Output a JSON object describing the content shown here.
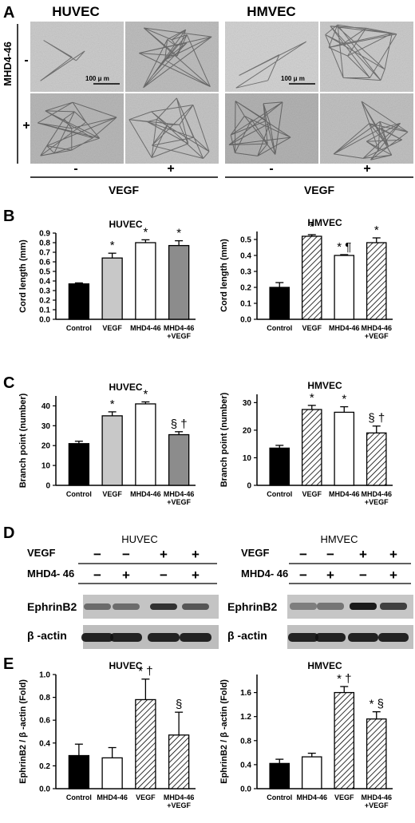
{
  "panel_labels": [
    "A",
    "B",
    "C",
    "D",
    "E"
  ],
  "panelA": {
    "huvec_title": "HUVEC",
    "hmvec_title": "HMVEC",
    "row_label": "MHD4-46",
    "row_minus": "-",
    "row_plus": "+",
    "col_minus": "-",
    "col_plus": "+",
    "vegf_label": "VEGF",
    "scale_bar_label": "100 μ m"
  },
  "star": "*",
  "chart_data": [
    {
      "id": "B-HUVEC",
      "type": "bar",
      "title": "HUVEC",
      "ylabel": "Cord length (mm)",
      "categories": [
        "Control",
        "VEGF",
        "MHD4-46",
        "MHD4-46\n+VEGF"
      ],
      "values": [
        0.37,
        0.64,
        0.8,
        0.77
      ],
      "errors": [
        0.01,
        0.05,
        0.03,
        0.05
      ],
      "ylim": [
        0,
        0.9
      ],
      "yticks": [
        "0.0",
        "0.1",
        "0.2",
        "0.3",
        "0.4",
        "0.5",
        "0.6",
        "0.7",
        "0.8",
        "0.9"
      ],
      "annotations": [
        "",
        "*",
        "*",
        "*"
      ],
      "fills": [
        "#000000",
        "#c8c8c8",
        "#ffffff",
        "#8c8c8c"
      ]
    },
    {
      "id": "B-HMVEC",
      "type": "bar",
      "title": "HMVEC",
      "ylabel": "Cord length (mm)",
      "categories": [
        "Control",
        "VEGF",
        "MHD4-46",
        "MHD4-46\n+VEGF"
      ],
      "values": [
        0.2,
        0.52,
        0.4,
        0.48
      ],
      "errors": [
        0.03,
        0.01,
        0.005,
        0.03
      ],
      "ylim": [
        0,
        0.55
      ],
      "yticks": [
        "0.0",
        "0.1",
        "0.2",
        "0.3",
        "0.4",
        "0.5"
      ],
      "annotations": [
        "",
        "*",
        "* ¶",
        "*"
      ],
      "fills": [
        "#000000",
        "hatch",
        "#ffffff",
        "hatch"
      ]
    },
    {
      "id": "C-HUVEC",
      "type": "bar",
      "title": "HUVEC",
      "ylabel": "Branch point (number)",
      "categories": [
        "Control",
        "VEGF",
        "MHD4-46",
        "MHD4-46\n+VEGF"
      ],
      "values": [
        21,
        35,
        41,
        25.5
      ],
      "errors": [
        1.2,
        2,
        1,
        1.5
      ],
      "ylim": [
        0,
        45
      ],
      "yticks": [
        "0",
        "10",
        "20",
        "30",
        "40"
      ],
      "annotations": [
        "",
        "*",
        "*",
        "§ †"
      ],
      "fills": [
        "#000000",
        "#c8c8c8",
        "#ffffff",
        "#8c8c8c"
      ]
    },
    {
      "id": "C-HMVEC",
      "type": "bar",
      "title": "HMVEC",
      "ylabel": "Branch point (number)",
      "categories": [
        "Control",
        "VEGF",
        "MHD4-46",
        "MHD4-46\n+VEGF"
      ],
      "values": [
        13.5,
        27.5,
        26.5,
        19
      ],
      "errors": [
        1,
        1.5,
        2,
        2.5
      ],
      "ylim": [
        0,
        33
      ],
      "yticks": [
        "0",
        "10",
        "20",
        "30"
      ],
      "annotations": [
        "",
        "*",
        "*",
        "§ †"
      ],
      "fills": [
        "#000000",
        "hatch",
        "#ffffff",
        "hatch"
      ]
    },
    {
      "id": "E-HUVEC",
      "type": "bar",
      "title": "HUVEC",
      "ylabel": "EphrinB2 / β -actin (Fold)",
      "categories": [
        "Control",
        "MHD4-46",
        "VEGF",
        "MHD4-46\n+VEGF"
      ],
      "values": [
        0.29,
        0.27,
        0.78,
        0.47
      ],
      "errors": [
        0.1,
        0.09,
        0.18,
        0.2
      ],
      "ylim": [
        0,
        1.0
      ],
      "yticks": [
        "0.0",
        "0.2",
        "0.4",
        "0.6",
        "0.8",
        "1.0"
      ],
      "annotations": [
        "",
        "",
        "* †",
        "§"
      ],
      "fills": [
        "#000000",
        "#ffffff",
        "hatch",
        "hatch"
      ]
    },
    {
      "id": "E-HMVEC",
      "type": "bar",
      "title": "HMVEC",
      "ylabel": "EphrinB2 / β -actin (Fold)",
      "categories": [
        "Control",
        "MHD4-46",
        "VEGF",
        "MHD4-46\n+VEGF"
      ],
      "values": [
        0.42,
        0.53,
        1.6,
        1.16
      ],
      "errors": [
        0.07,
        0.06,
        0.1,
        0.12
      ],
      "ylim": [
        0,
        1.9
      ],
      "yticks": [
        "0.0",
        "0.4",
        "0.8",
        "1.2",
        "1.6"
      ],
      "annotations": [
        "",
        "",
        "* †",
        "* §"
      ],
      "fills": [
        "#000000",
        "#ffffff",
        "hatch",
        "hatch"
      ]
    }
  ],
  "panelD": {
    "left_title": "HUVEC",
    "right_title": "HMVEC",
    "row1_label": "VEGF",
    "row2_label": "MHD4- 46",
    "vegf_signs": [
      "−",
      "−",
      "+",
      "+"
    ],
    "mhd_signs": [
      "−",
      "+",
      "−",
      "+"
    ],
    "band1_label": "EphrinB2",
    "band2_label": "β -actin"
  }
}
